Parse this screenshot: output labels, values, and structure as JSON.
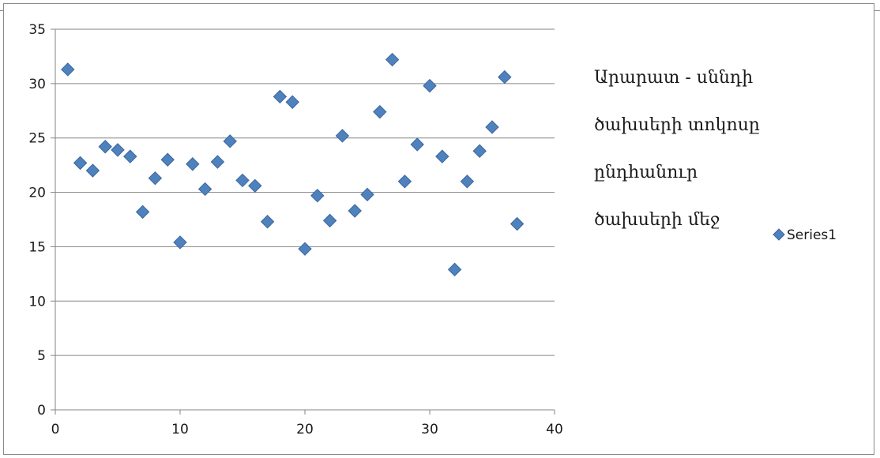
{
  "chart_data": {
    "type": "scatter",
    "title": "Արարատ - սննդի ծախսերի տոկոսը ընդհանուր ծախսերի մեջ",
    "title_lines": [
      "Արարատ - սննդի",
      "ծախսերի տոկոսը",
      "ընդհանուր",
      "ծախսերի մեջ"
    ],
    "xlabel": "",
    "ylabel": "",
    "xlim": [
      0,
      40
    ],
    "ylim": [
      0,
      35
    ],
    "x_ticks": [
      0,
      10,
      20,
      30,
      40
    ],
    "y_ticks": [
      0,
      5,
      10,
      15,
      20,
      25,
      30,
      35
    ],
    "grid": "horizontal",
    "legend_position": "right",
    "marker": "diamond",
    "series": [
      {
        "name": "Series1",
        "color": "#4f81bd",
        "points": [
          [
            1,
            31.3
          ],
          [
            2,
            22.7
          ],
          [
            3,
            22.0
          ],
          [
            4,
            24.2
          ],
          [
            5,
            23.9
          ],
          [
            6,
            23.3
          ],
          [
            7,
            18.2
          ],
          [
            8,
            21.3
          ],
          [
            9,
            23.0
          ],
          [
            10,
            15.4
          ],
          [
            11,
            22.6
          ],
          [
            12,
            20.3
          ],
          [
            13,
            22.8
          ],
          [
            14,
            24.7
          ],
          [
            15,
            21.1
          ],
          [
            16,
            20.6
          ],
          [
            17,
            17.3
          ],
          [
            18,
            28.8
          ],
          [
            19,
            28.3
          ],
          [
            20,
            14.8
          ],
          [
            21,
            19.7
          ],
          [
            22,
            17.4
          ],
          [
            23,
            25.2
          ],
          [
            24,
            18.3
          ],
          [
            25,
            19.8
          ],
          [
            26,
            27.4
          ],
          [
            27,
            32.2
          ],
          [
            28,
            21.0
          ],
          [
            29,
            24.4
          ],
          [
            30,
            29.8
          ],
          [
            31,
            23.3
          ],
          [
            32,
            12.9
          ],
          [
            33,
            21.0
          ],
          [
            34,
            23.8
          ],
          [
            35,
            26.0
          ],
          [
            36,
            30.6
          ],
          [
            37,
            17.1
          ]
        ]
      }
    ]
  }
}
